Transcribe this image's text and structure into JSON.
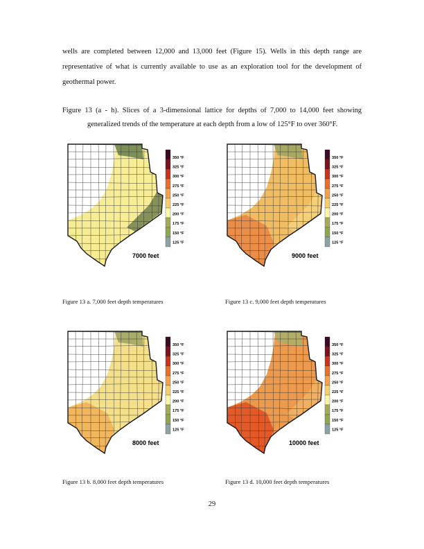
{
  "body_paragraph": "wells are completed between 12,000 and 13,000 feet (Figure 15).  Wells in this depth range are representative of what is currently available to use as an exploration tool for the development of geothermal power.",
  "figure_intro": {
    "line1": "Figure 13 (a - h).  Slices of a 3-dimensional lattice for depths of 7,000 to 14,000 feet showing",
    "line2": "generalized trends of the temperature at each depth from a low of 125°F to over 360°F."
  },
  "legend": {
    "labels": [
      "350 °F",
      "325 °F",
      "300 °F",
      "275 °F",
      "250 °F",
      "225 °F",
      "200 °F",
      "175 °F",
      "150 °F",
      "125 °F"
    ],
    "colors": [
      "#3d0a24",
      "#7a1220",
      "#c8341f",
      "#e8702d",
      "#f2a24a",
      "#f6cf6a",
      "#fbf5a8",
      "#a4ab58",
      "#8fa84e",
      "#8aa4a6"
    ]
  },
  "maps": [
    {
      "id": "a",
      "depth_label": "7000 feet",
      "caption": "Figure 13 a.  7,000 feet depth temperatures",
      "colors": {
        "north": "#7f8f5a",
        "band": "#f7ed97",
        "coast": "#86905b",
        "south": "#f6ec93"
      }
    },
    {
      "id": "c",
      "depth_label": "9000 feet",
      "caption": "Figure 13 c.  9,000 feet depth temperatures",
      "colors": {
        "north": "#a6a964",
        "band": "#f1bd63",
        "coast": "#f5d079",
        "south": "#e98d49"
      }
    },
    {
      "id": "b",
      "depth_label": "8000 feet",
      "caption": "Figure 13 b.  8,000 feet depth temperatures",
      "colors": {
        "north": "#a8ad6a",
        "band": "#f4e08a",
        "coast": "#f6e08c",
        "south": "#f2b65d"
      }
    },
    {
      "id": "d",
      "depth_label": "10000 feet",
      "caption": "Figure 13 d.  10,000 feet depth temperatures",
      "colors": {
        "north": "#b3ad67",
        "band": "#ec9a4e",
        "coast": "#f0b061",
        "south": "#e35a28"
      }
    }
  ],
  "page_number": "29"
}
